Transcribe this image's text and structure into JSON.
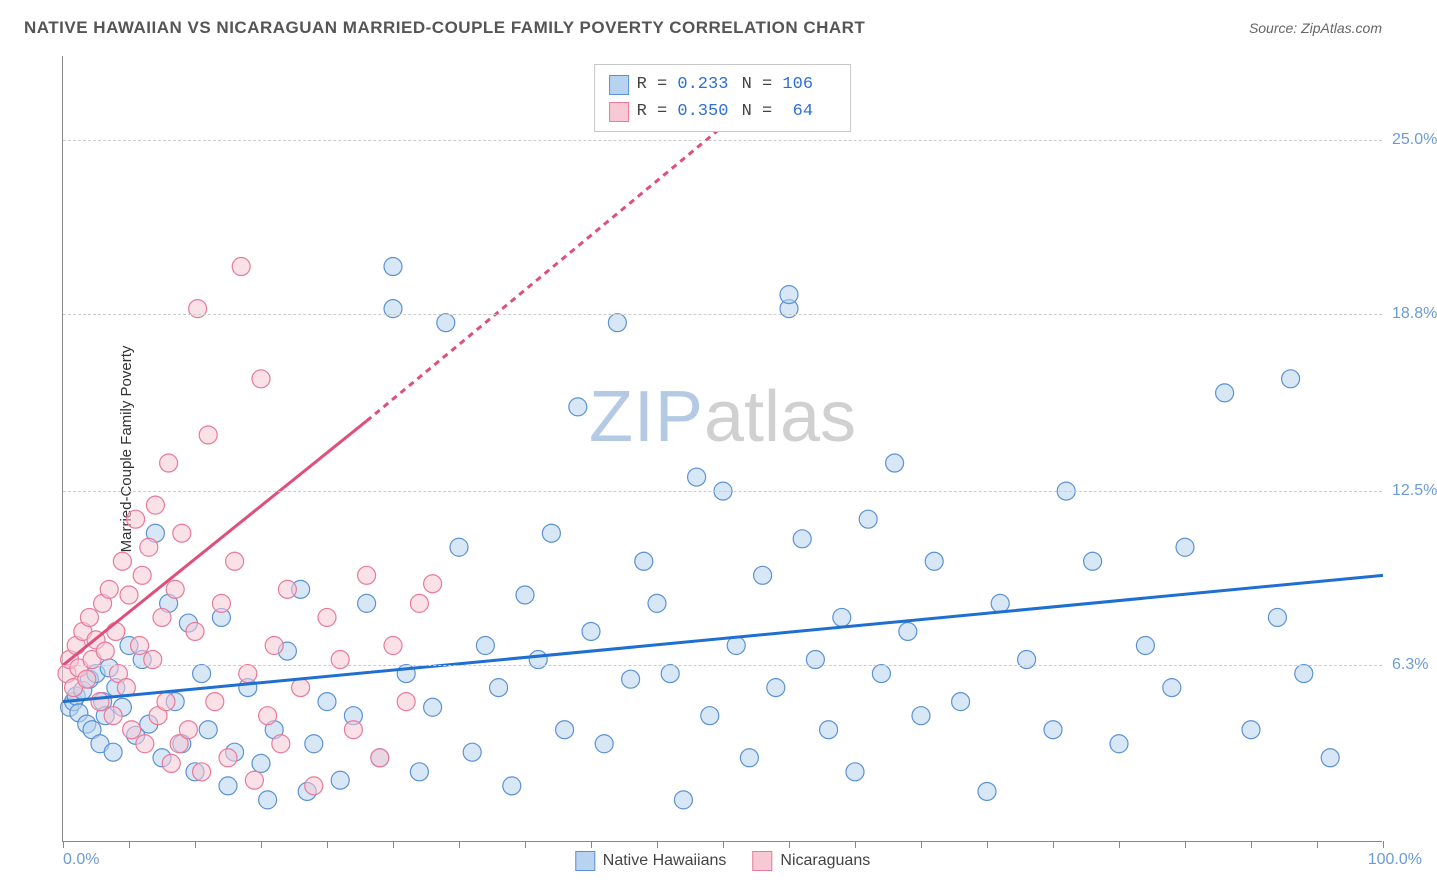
{
  "title": "NATIVE HAWAIIAN VS NICARAGUAN MARRIED-COUPLE FAMILY POVERTY CORRELATION CHART",
  "source": "Source: ZipAtlas.com",
  "y_axis_title": "Married-Couple Family Poverty",
  "watermark_a": "ZIP",
  "watermark_b": "atlas",
  "colors": {
    "blue_fill": "#b8d3ef",
    "blue_stroke": "#5b92d4",
    "blue_line": "#1f6fd1",
    "pink_fill": "#f6c9d5",
    "pink_stroke": "#e87a9a",
    "pink_line": "#e04f7a",
    "grid": "#cccccc",
    "axis": "#888888",
    "tick_label": "#6b9bd8",
    "text": "#444444"
  },
  "chart": {
    "type": "scatter",
    "xlim": [
      0,
      100
    ],
    "ylim": [
      0,
      28
    ],
    "y_ticks": [
      {
        "v": 6.3,
        "label": "6.3%"
      },
      {
        "v": 12.5,
        "label": "12.5%"
      },
      {
        "v": 18.8,
        "label": "18.8%"
      },
      {
        "v": 25.0,
        "label": "25.0%"
      }
    ],
    "x_tick_step": 5,
    "x_min_label": "0.0%",
    "x_max_label": "100.0%",
    "marker_radius": 9,
    "marker_opacity": 0.55,
    "line_width": 3
  },
  "series": [
    {
      "name": "Native Hawaiians",
      "color_fill_key": "blue_fill",
      "color_stroke_key": "blue_stroke",
      "line_color_key": "blue_line",
      "R": "0.233",
      "N": "106",
      "trend": {
        "x1": 0,
        "y1": 5.0,
        "x2": 100,
        "y2": 9.5,
        "dash": null
      },
      "points": [
        [
          0.5,
          4.8
        ],
        [
          0.8,
          5.0
        ],
        [
          1.0,
          5.2
        ],
        [
          1.2,
          4.6
        ],
        [
          1.5,
          5.4
        ],
        [
          1.8,
          4.2
        ],
        [
          2.0,
          5.8
        ],
        [
          2.2,
          4.0
        ],
        [
          2.5,
          6.0
        ],
        [
          2.8,
          3.5
        ],
        [
          3.0,
          5.0
        ],
        [
          3.2,
          4.5
        ],
        [
          3.5,
          6.2
        ],
        [
          3.8,
          3.2
        ],
        [
          4.0,
          5.5
        ],
        [
          4.5,
          4.8
        ],
        [
          5.0,
          7.0
        ],
        [
          5.5,
          3.8
        ],
        [
          6.0,
          6.5
        ],
        [
          6.5,
          4.2
        ],
        [
          7.0,
          11.0
        ],
        [
          7.5,
          3.0
        ],
        [
          8.0,
          8.5
        ],
        [
          8.5,
          5.0
        ],
        [
          9.0,
          3.5
        ],
        [
          9.5,
          7.8
        ],
        [
          10.0,
          2.5
        ],
        [
          10.5,
          6.0
        ],
        [
          11.0,
          4.0
        ],
        [
          12.0,
          8.0
        ],
        [
          12.5,
          2.0
        ],
        [
          13.0,
          3.2
        ],
        [
          14.0,
          5.5
        ],
        [
          15.0,
          2.8
        ],
        [
          15.5,
          1.5
        ],
        [
          16.0,
          4.0
        ],
        [
          17.0,
          6.8
        ],
        [
          18.0,
          9.0
        ],
        [
          18.5,
          1.8
        ],
        [
          19.0,
          3.5
        ],
        [
          20.0,
          5.0
        ],
        [
          21.0,
          2.2
        ],
        [
          22.0,
          4.5
        ],
        [
          23.0,
          8.5
        ],
        [
          24.0,
          3.0
        ],
        [
          25.0,
          19.0
        ],
        [
          25.0,
          20.5
        ],
        [
          26.0,
          6.0
        ],
        [
          27.0,
          2.5
        ],
        [
          28.0,
          4.8
        ],
        [
          29.0,
          18.5
        ],
        [
          30.0,
          10.5
        ],
        [
          31.0,
          3.2
        ],
        [
          32.0,
          7.0
        ],
        [
          33.0,
          5.5
        ],
        [
          34.0,
          2.0
        ],
        [
          35.0,
          8.8
        ],
        [
          36.0,
          6.5
        ],
        [
          37.0,
          11.0
        ],
        [
          38.0,
          4.0
        ],
        [
          39.0,
          15.5
        ],
        [
          40.0,
          7.5
        ],
        [
          41.0,
          3.5
        ],
        [
          42.0,
          18.5
        ],
        [
          43.0,
          5.8
        ],
        [
          44.0,
          10.0
        ],
        [
          45.0,
          8.5
        ],
        [
          46.0,
          6.0
        ],
        [
          47.0,
          1.5
        ],
        [
          48.0,
          13.0
        ],
        [
          49.0,
          4.5
        ],
        [
          50.0,
          12.5
        ],
        [
          51.0,
          7.0
        ],
        [
          52.0,
          3.0
        ],
        [
          53.0,
          9.5
        ],
        [
          54.0,
          5.5
        ],
        [
          55.0,
          19.0
        ],
        [
          56.0,
          10.8
        ],
        [
          57.0,
          6.5
        ],
        [
          58.0,
          4.0
        ],
        [
          59.0,
          8.0
        ],
        [
          60.0,
          2.5
        ],
        [
          61.0,
          11.5
        ],
        [
          62.0,
          6.0
        ],
        [
          63.0,
          13.5
        ],
        [
          64.0,
          7.5
        ],
        [
          65.0,
          4.5
        ],
        [
          66.0,
          10.0
        ],
        [
          68.0,
          5.0
        ],
        [
          70.0,
          1.8
        ],
        [
          71.0,
          8.5
        ],
        [
          73.0,
          6.5
        ],
        [
          75.0,
          4.0
        ],
        [
          76.0,
          12.5
        ],
        [
          78.0,
          10.0
        ],
        [
          80.0,
          3.5
        ],
        [
          82.0,
          7.0
        ],
        [
          84.0,
          5.5
        ],
        [
          85.0,
          10.5
        ],
        [
          88.0,
          16.0
        ],
        [
          90.0,
          4.0
        ],
        [
          92.0,
          8.0
        ],
        [
          94.0,
          6.0
        ],
        [
          96.0,
          3.0
        ],
        [
          93.0,
          16.5
        ],
        [
          55.0,
          19.5
        ]
      ]
    },
    {
      "name": "Nicaraguans",
      "color_fill_key": "pink_fill",
      "color_stroke_key": "pink_stroke",
      "line_color_key": "pink_line",
      "R": "0.350",
      "N": "64",
      "trend": {
        "x1": 0,
        "y1": 6.3,
        "x2": 23,
        "y2": 15.0,
        "dash": null
      },
      "trend_ext": {
        "x1": 23,
        "y1": 15.0,
        "x2": 50,
        "y2": 25.5,
        "dash": "6,5"
      },
      "points": [
        [
          0.3,
          6.0
        ],
        [
          0.5,
          6.5
        ],
        [
          0.8,
          5.5
        ],
        [
          1.0,
          7.0
        ],
        [
          1.2,
          6.2
        ],
        [
          1.5,
          7.5
        ],
        [
          1.8,
          5.8
        ],
        [
          2.0,
          8.0
        ],
        [
          2.2,
          6.5
        ],
        [
          2.5,
          7.2
        ],
        [
          2.8,
          5.0
        ],
        [
          3.0,
          8.5
        ],
        [
          3.2,
          6.8
        ],
        [
          3.5,
          9.0
        ],
        [
          3.8,
          4.5
        ],
        [
          4.0,
          7.5
        ],
        [
          4.2,
          6.0
        ],
        [
          4.5,
          10.0
        ],
        [
          4.8,
          5.5
        ],
        [
          5.0,
          8.8
        ],
        [
          5.2,
          4.0
        ],
        [
          5.5,
          11.5
        ],
        [
          5.8,
          7.0
        ],
        [
          6.0,
          9.5
        ],
        [
          6.2,
          3.5
        ],
        [
          6.5,
          10.5
        ],
        [
          6.8,
          6.5
        ],
        [
          7.0,
          12.0
        ],
        [
          7.2,
          4.5
        ],
        [
          7.5,
          8.0
        ],
        [
          7.8,
          5.0
        ],
        [
          8.0,
          13.5
        ],
        [
          8.2,
          2.8
        ],
        [
          8.5,
          9.0
        ],
        [
          8.8,
          3.5
        ],
        [
          9.0,
          11.0
        ],
        [
          9.5,
          4.0
        ],
        [
          10.0,
          7.5
        ],
        [
          10.2,
          19.0
        ],
        [
          10.5,
          2.5
        ],
        [
          11.0,
          14.5
        ],
        [
          11.5,
          5.0
        ],
        [
          12.0,
          8.5
        ],
        [
          12.5,
          3.0
        ],
        [
          13.0,
          10.0
        ],
        [
          13.5,
          20.5
        ],
        [
          14.0,
          6.0
        ],
        [
          14.5,
          2.2
        ],
        [
          15.0,
          16.5
        ],
        [
          15.5,
          4.5
        ],
        [
          16.0,
          7.0
        ],
        [
          16.5,
          3.5
        ],
        [
          17.0,
          9.0
        ],
        [
          18.0,
          5.5
        ],
        [
          19.0,
          2.0
        ],
        [
          20.0,
          8.0
        ],
        [
          21.0,
          6.5
        ],
        [
          22.0,
          4.0
        ],
        [
          23.0,
          9.5
        ],
        [
          24.0,
          3.0
        ],
        [
          25.0,
          7.0
        ],
        [
          26.0,
          5.0
        ],
        [
          27.0,
          8.5
        ],
        [
          28.0,
          9.2
        ]
      ]
    }
  ],
  "legend_bottom": {
    "items": [
      "Native Hawaiians",
      "Nicaraguans"
    ]
  }
}
